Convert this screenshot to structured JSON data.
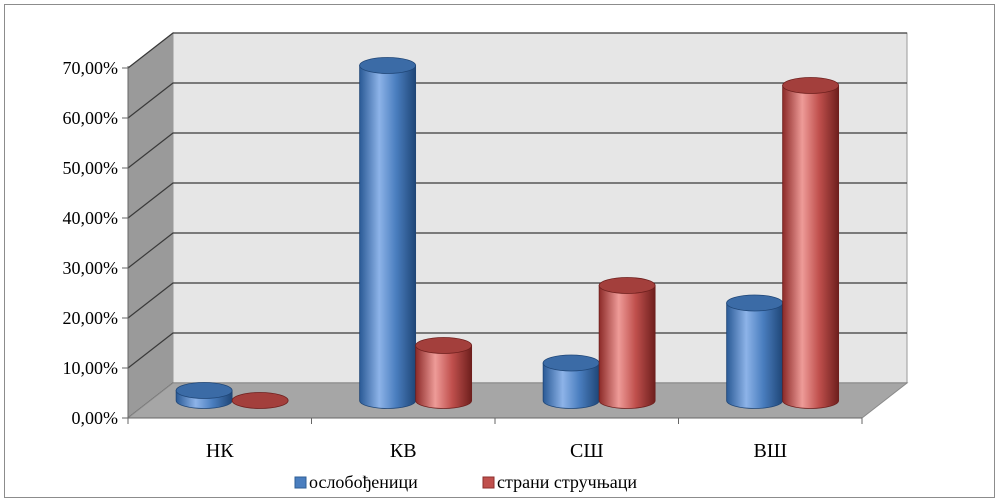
{
  "chart_data": {
    "type": "bar",
    "style": "3d-cylinder",
    "categories": [
      "НК",
      "КВ",
      "СШ",
      "ВШ"
    ],
    "series": [
      {
        "name": "ослобођеници",
        "values": [
          2.0,
          67.0,
          7.5,
          19.5
        ],
        "color": "#4a7ebf"
      },
      {
        "name": "страни стручњаци",
        "values": [
          0.0,
          11.0,
          23.0,
          63.0
        ],
        "color": "#c0504d"
      }
    ],
    "y_ticks": [
      "0,00%",
      "10,00%",
      "20,00%",
      "30,00%",
      "40,00%",
      "50,00%",
      "60,00%",
      "70,00%"
    ],
    "ylim": [
      0,
      70
    ],
    "grid": true,
    "legend_position": "bottom",
    "wall_color": "#e6e6e6",
    "floor_color": "#a6a6a6"
  }
}
